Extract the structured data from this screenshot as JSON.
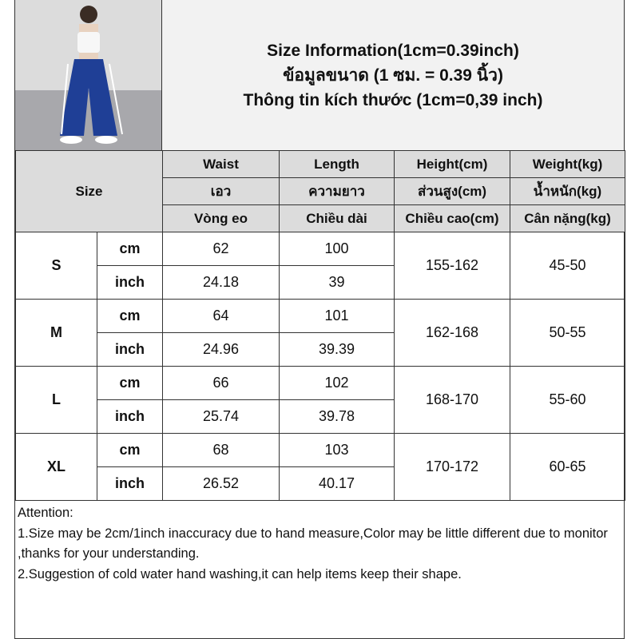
{
  "header": {
    "lines": [
      "Size Information(1cm=0.39inch)",
      "ข้อมูลขนาด (1 ซม. = 0.39 นิ้ว)",
      "Thông tin kích thước (1cm=0,39 inch)"
    ]
  },
  "table": {
    "size_label": "Size",
    "columns": [
      {
        "en": "Waist",
        "th": "เอว",
        "vi": "Vòng eo"
      },
      {
        "en": "Length",
        "th": "ความยาว",
        "vi": "Chiều dài"
      },
      {
        "en": "Height(cm)",
        "th": "ส่วนสูง(cm)",
        "vi": "Chiều cao(cm)"
      },
      {
        "en": "Weight(kg)",
        "th": "น้ำหนัก(kg)",
        "vi": "Cân nặng(kg)"
      }
    ],
    "units": {
      "cm": "cm",
      "inch": "inch"
    },
    "rows": [
      {
        "size": "S",
        "waist_cm": "62",
        "length_cm": "100",
        "waist_in": "24.18",
        "length_in": "39",
        "height": "155-162",
        "weight": "45-50"
      },
      {
        "size": "M",
        "waist_cm": "64",
        "length_cm": "101",
        "waist_in": "24.96",
        "length_in": "39.39",
        "height": "162-168",
        "weight": "50-55"
      },
      {
        "size": "L",
        "waist_cm": "66",
        "length_cm": "102",
        "waist_in": "25.74",
        "length_in": "39.78",
        "height": "168-170",
        "weight": "55-60"
      },
      {
        "size": "XL",
        "waist_cm": "68",
        "length_cm": "103",
        "waist_in": "26.52",
        "length_in": "40.17",
        "height": "170-172",
        "weight": "60-65"
      }
    ]
  },
  "attention": {
    "title": "Attention:",
    "lines": [
      "1.Size may be 2cm/1inch inaccuracy due to hand measure,Color may be little different due to monitor ,thanks for your understanding.",
      "2.Suggestion of cold water hand washing,it can help items keep their shape."
    ]
  }
}
